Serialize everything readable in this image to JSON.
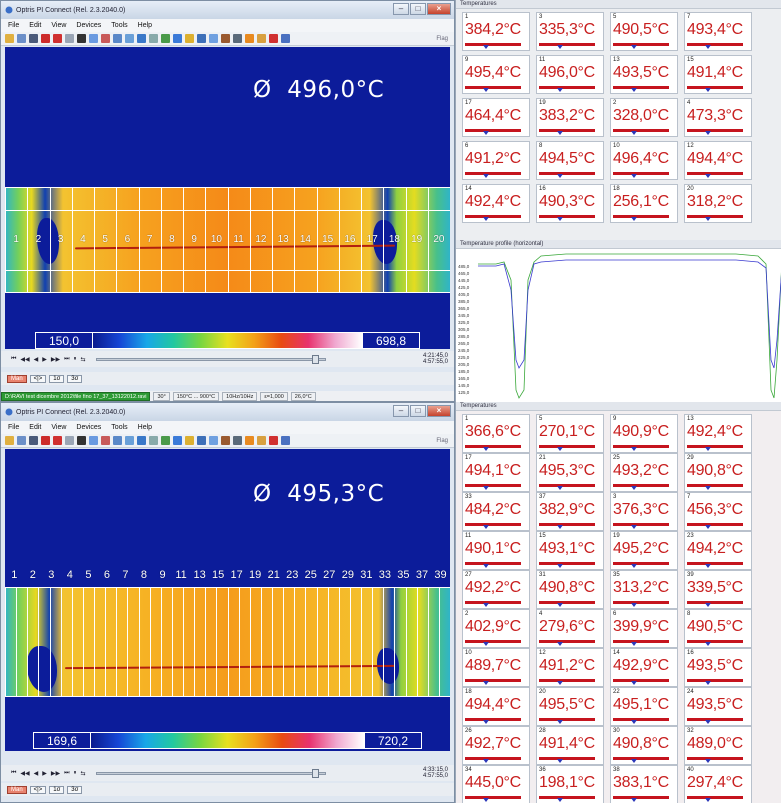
{
  "top_window": {
    "title": "Optris PI Connect (Rel. 2.3.2040.0)",
    "menu": [
      "File",
      "Edit",
      "View",
      "Devices",
      "Tools",
      "Help"
    ],
    "toolbar_flag": "Flag",
    "avg_symbol": "Ø",
    "avg_value": "496,0°C",
    "zones": [
      "1",
      "2",
      "3",
      "4",
      "5",
      "6",
      "7",
      "8",
      "9",
      "10",
      "11",
      "12",
      "13",
      "14",
      "15",
      "16",
      "17",
      "18",
      "19",
      "20"
    ],
    "palette_min": "150,0",
    "palette_max": "698,8",
    "player_time_1": "4:21:45,0",
    "player_time_2": "4:57:55,0",
    "modes": [
      "Man",
      "<|>",
      "1σ",
      "3σ"
    ],
    "status": [
      "D:\\RAVI test dicembre 2012\\file fino 17_37_13122012.ravi",
      "30°",
      "150°C ... 900°C",
      "10Hz/10Hz",
      "ε=1,000",
      "26,0°C"
    ]
  },
  "top_temps": {
    "header": "Temperatures",
    "cells": [
      {
        "num": "1",
        "val": "384,2°C"
      },
      {
        "num": "3",
        "val": "335,3°C"
      },
      {
        "num": "5",
        "val": "490,5°C"
      },
      {
        "num": "7",
        "val": "493,4°C"
      },
      {
        "num": "9",
        "val": "495,4°C"
      },
      {
        "num": "11",
        "val": "496,0°C"
      },
      {
        "num": "13",
        "val": "493,5°C"
      },
      {
        "num": "15",
        "val": "491,4°C"
      },
      {
        "num": "17",
        "val": "464,4°C"
      },
      {
        "num": "19",
        "val": "383,2°C"
      },
      {
        "num": "2",
        "val": "328,0°C"
      },
      {
        "num": "4",
        "val": "473,3°C"
      },
      {
        "num": "6",
        "val": "491,2°C"
      },
      {
        "num": "8",
        "val": "494,5°C"
      },
      {
        "num": "10",
        "val": "496,4°C"
      },
      {
        "num": "12",
        "val": "494,4°C"
      },
      {
        "num": "14",
        "val": "492,4°C"
      },
      {
        "num": "16",
        "val": "490,3°C"
      },
      {
        "num": "18",
        "val": "256,1°C"
      },
      {
        "num": "20",
        "val": "318,2°C"
      }
    ]
  },
  "profile": {
    "header": "Temperature profile (horizontal)",
    "y_ticks": [
      "485,0",
      "465,0",
      "445,0",
      "425,0",
      "405,0",
      "385,0",
      "365,0",
      "345,0",
      "325,0",
      "305,0",
      "285,0",
      "265,0",
      "245,0",
      "225,0",
      "205,0",
      "185,0",
      "165,0",
      "145,0",
      "125,0"
    ]
  },
  "bottom_window": {
    "title": "Optris PI Connect (Rel. 2.3.2040.0)",
    "menu": [
      "File",
      "Edit",
      "View",
      "Devices",
      "Tools",
      "Help"
    ],
    "toolbar_flag": "Flag",
    "avg_symbol": "Ø",
    "avg_value": "495,3°C",
    "zones": [
      "1",
      "2",
      "3",
      "4",
      "5",
      "6",
      "7",
      "8",
      "9",
      "11",
      "13",
      "15",
      "17",
      "19",
      "21",
      "23",
      "25",
      "27",
      "29",
      "31",
      "33",
      "35",
      "37",
      "39"
    ],
    "palette_min": "169,6",
    "palette_max": "720,2",
    "player_time_1": "4:33:15,0",
    "player_time_2": "4:57:55,0",
    "modes": [
      "Man",
      "<|>",
      "1σ",
      "3σ"
    ]
  },
  "bottom_temps": {
    "header": "Temperatures",
    "cells": [
      {
        "num": "1",
        "val": "366,6°C"
      },
      {
        "num": "5",
        "val": "270,1°C"
      },
      {
        "num": "9",
        "val": "490,9°C"
      },
      {
        "num": "13",
        "val": "492,4°C"
      },
      {
        "num": "17",
        "val": "494,1°C"
      },
      {
        "num": "21",
        "val": "495,3°C"
      },
      {
        "num": "25",
        "val": "493,2°C"
      },
      {
        "num": "29",
        "val": "490,8°C"
      },
      {
        "num": "33",
        "val": "484,2°C"
      },
      {
        "num": "37",
        "val": "382,9°C"
      },
      {
        "num": "3",
        "val": "376,3°C"
      },
      {
        "num": "7",
        "val": "456,3°C"
      },
      {
        "num": "11",
        "val": "490,1°C"
      },
      {
        "num": "15",
        "val": "493,1°C"
      },
      {
        "num": "19",
        "val": "495,2°C"
      },
      {
        "num": "23",
        "val": "494,2°C"
      },
      {
        "num": "27",
        "val": "492,2°C"
      },
      {
        "num": "31",
        "val": "490,8°C"
      },
      {
        "num": "35",
        "val": "313,2°C"
      },
      {
        "num": "39",
        "val": "339,5°C"
      },
      {
        "num": "2",
        "val": "402,9°C"
      },
      {
        "num": "4",
        "val": "279,6°C"
      },
      {
        "num": "6",
        "val": "399,9°C"
      },
      {
        "num": "8",
        "val": "490,5°C"
      },
      {
        "num": "10",
        "val": "489,7°C"
      },
      {
        "num": "12",
        "val": "491,2°C"
      },
      {
        "num": "14",
        "val": "492,9°C"
      },
      {
        "num": "16",
        "val": "493,5°C"
      },
      {
        "num": "18",
        "val": "494,4°C"
      },
      {
        "num": "20",
        "val": "495,5°C"
      },
      {
        "num": "22",
        "val": "495,1°C"
      },
      {
        "num": "24",
        "val": "493,5°C"
      },
      {
        "num": "26",
        "val": "492,7°C"
      },
      {
        "num": "28",
        "val": "491,4°C"
      },
      {
        "num": "30",
        "val": "490,8°C"
      },
      {
        "num": "32",
        "val": "489,0°C"
      },
      {
        "num": "34",
        "val": "445,0°C"
      },
      {
        "num": "36",
        "val": "198,1°C"
      },
      {
        "num": "38",
        "val": "383,1°C"
      },
      {
        "num": "40",
        "val": "297,4°C"
      }
    ]
  }
}
